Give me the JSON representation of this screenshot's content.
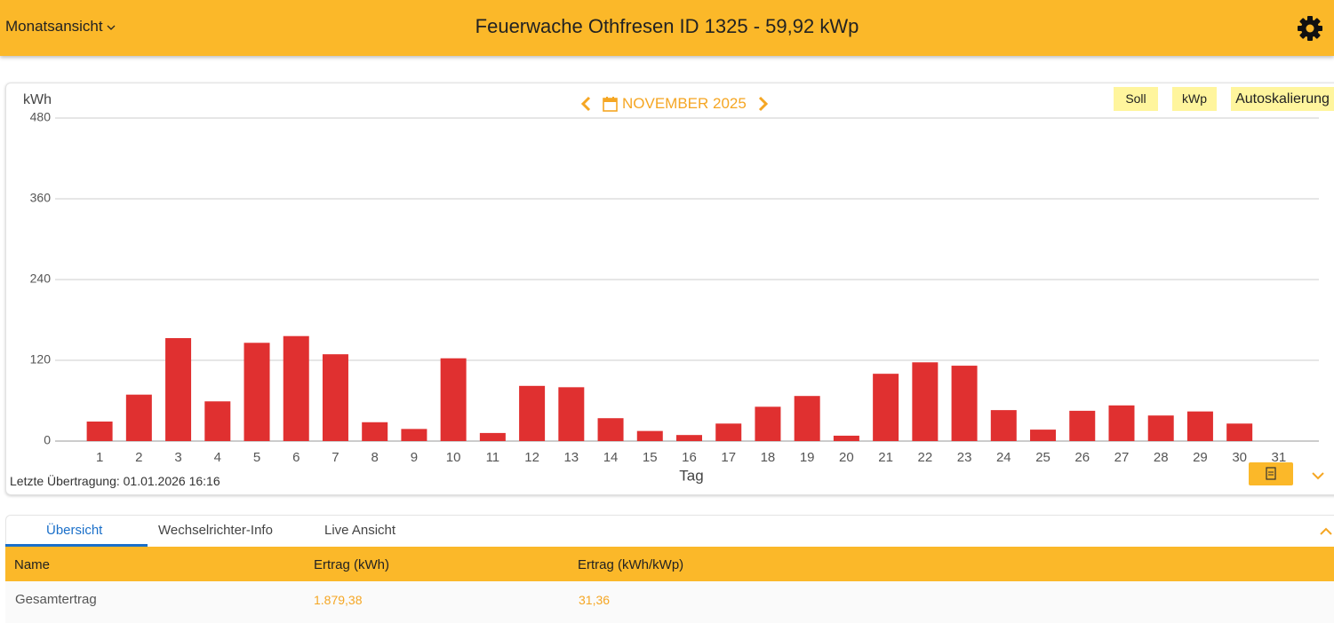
{
  "header": {
    "view_menu": "Monatsansicht",
    "title": "Feuerwache Othfresen ID 1325 - 59,92 kWp"
  },
  "month_nav": {
    "label": "NOVEMBER 2025"
  },
  "chart_buttons": [
    "Soll",
    "kWp",
    "Autoskalierung"
  ],
  "chart_data": {
    "type": "bar",
    "ylabel": "kWh",
    "xlabel": "Tag",
    "categories": [
      "1",
      "2",
      "3",
      "4",
      "5",
      "6",
      "7",
      "8",
      "9",
      "10",
      "11",
      "12",
      "13",
      "14",
      "15",
      "16",
      "17",
      "18",
      "19",
      "20",
      "21",
      "22",
      "23",
      "24",
      "25",
      "26",
      "27",
      "28",
      "29",
      "30",
      "31"
    ],
    "values": [
      29,
      69,
      153,
      59,
      146,
      156,
      129,
      28,
      18,
      123,
      12,
      82,
      80,
      34,
      15,
      9,
      26,
      51,
      67,
      8,
      100,
      117,
      112,
      46,
      17,
      45,
      53,
      38,
      44,
      26,
      null
    ],
    "color": "#e03030",
    "ylim": [
      0,
      480
    ],
    "yticks": [
      0,
      120,
      240,
      360,
      480
    ],
    "grid": true
  },
  "last_transfer": "Letzte Übertragung: 01.01.2026 16:16",
  "tabs": [
    "Übersicht",
    "Wechselrichter-Info",
    "Live Ansicht"
  ],
  "table": {
    "header": [
      "Name",
      "Ertrag (kWh)",
      "Ertrag (kWh/kWp)"
    ],
    "rows": [
      [
        "Gesamtertrag",
        "1.879,38",
        "31,36"
      ]
    ]
  }
}
